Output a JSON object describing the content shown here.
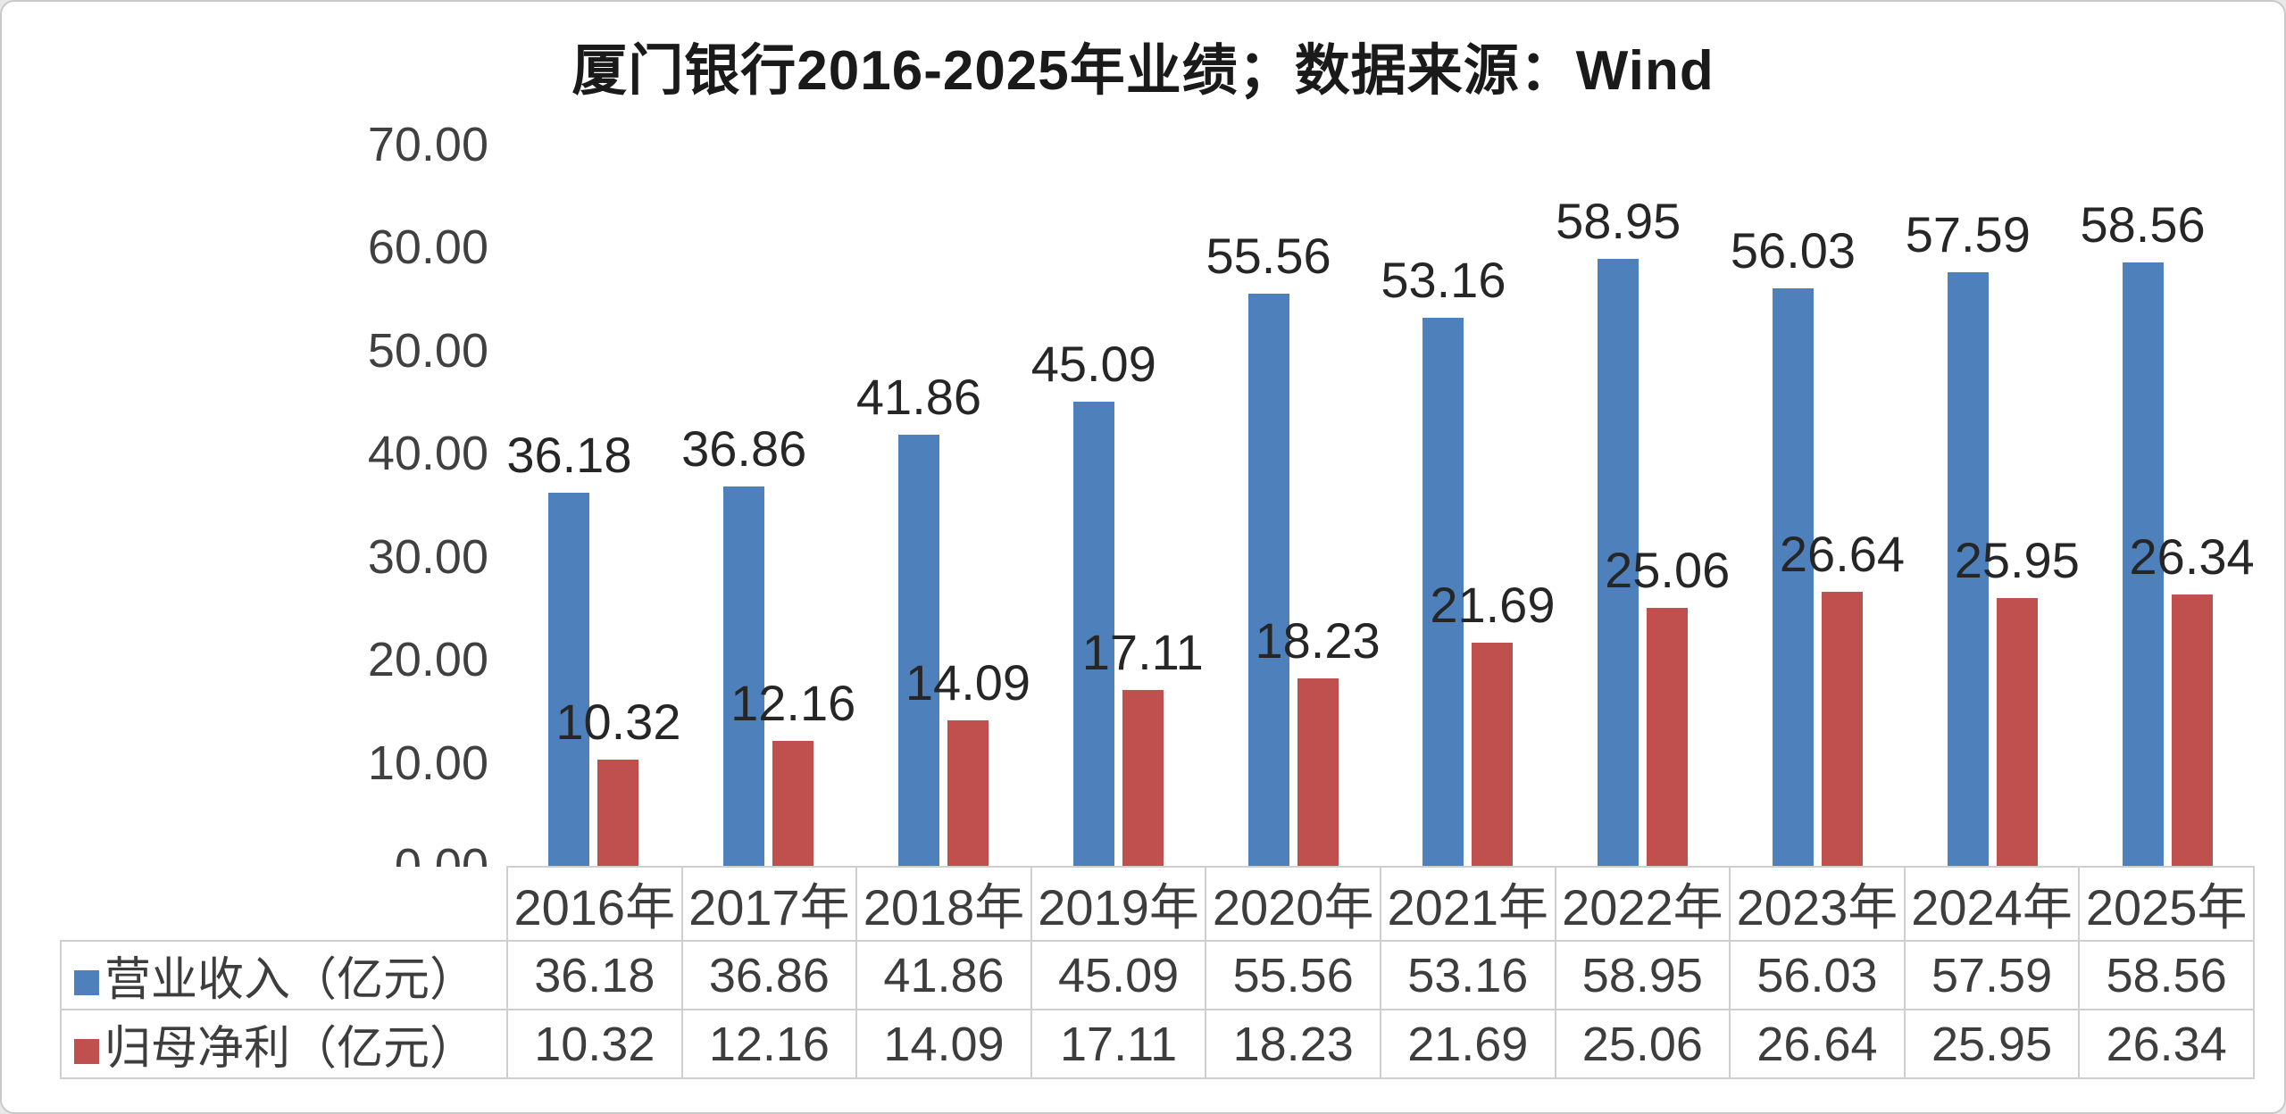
{
  "title": "厦门银行2016-2025年业绩；数据来源：Wind",
  "colors": {
    "revenue_bar": "#4e80bc",
    "profit_bar": "#c0504d",
    "grid_border": "#cfcfcf",
    "text": "#3d3d3d"
  },
  "chart_data": {
    "type": "bar",
    "title": "厦门银行2016-2025年业绩；数据来源：Wind",
    "categories": [
      "2016年",
      "2017年",
      "2018年",
      "2019年",
      "2020年",
      "2021年",
      "2022年",
      "2023年",
      "2024年",
      "2025年"
    ],
    "series": [
      {
        "name": "营业收入（亿元）",
        "key": "revenue",
        "color": "#4e80bc",
        "values": [
          36.18,
          36.86,
          41.86,
          45.09,
          55.56,
          53.16,
          58.95,
          56.03,
          57.59,
          58.56
        ]
      },
      {
        "name": "归母净利（亿元）",
        "key": "profit",
        "color": "#c0504d",
        "values": [
          10.32,
          12.16,
          14.09,
          17.11,
          18.23,
          21.69,
          25.06,
          26.64,
          25.95,
          26.34
        ]
      }
    ],
    "ylim": [
      0,
      70
    ],
    "yticks": [
      "70.00",
      "60.00",
      "50.00",
      "40.00",
      "30.00",
      "20.00",
      "10.00",
      "0.00"
    ],
    "grid": false,
    "legend_position": "table-left",
    "value_labels": "outside-end",
    "data_table": true
  }
}
